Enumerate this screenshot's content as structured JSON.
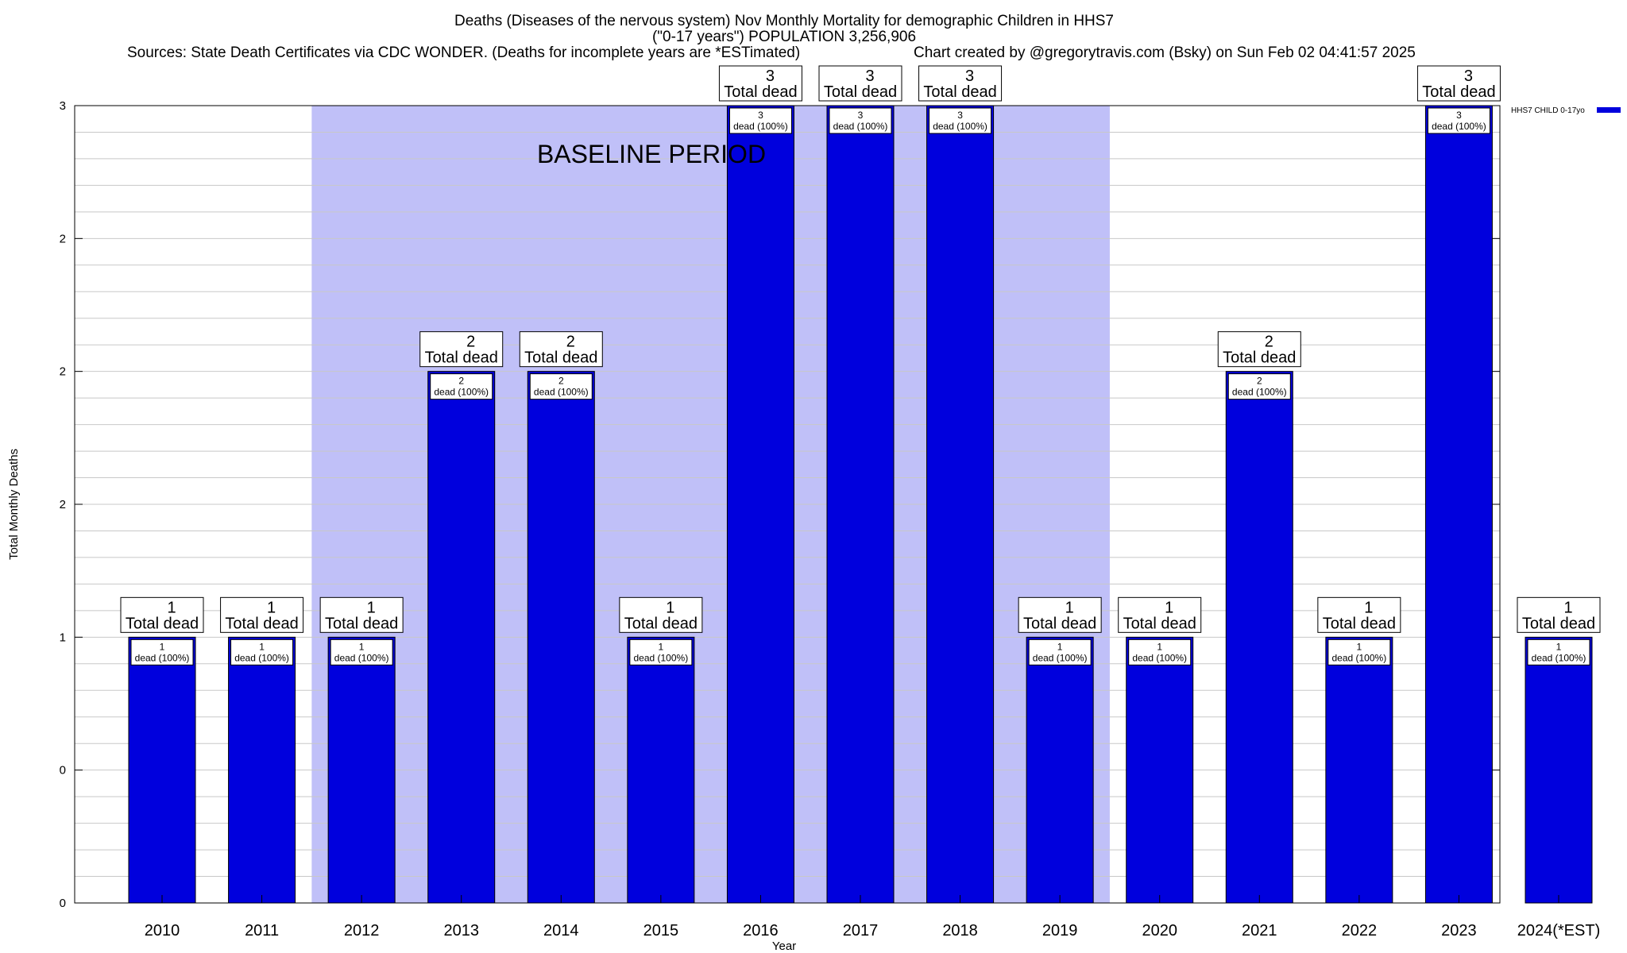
{
  "chart_data": {
    "type": "bar",
    "title": "Deaths (Diseases of the nervous system) Nov Monthly Mortality for demographic Children in HHS7",
    "subtitle": "(\"0-17 years\") POPULATION 3,256,906",
    "sources": "Sources: State Death Certificates via CDC WONDER. (Deaths for incomplete years are *ESTimated)",
    "credit": "Chart created by @gregorytravis.com (Bsky) on Sun Feb 02 04:41:57 2025",
    "xlabel": "Year",
    "ylabel": "Total Monthly Deaths",
    "categories": [
      "2010",
      "2011",
      "2012",
      "2013",
      "2014",
      "2015",
      "2016",
      "2017",
      "2018",
      "2019",
      "2020",
      "2021",
      "2022",
      "2023",
      "2024(*EST)"
    ],
    "series": [
      {
        "name": "HHS7 CHILD 0-17yo",
        "color": "#0000dd",
        "values": [
          1,
          1,
          1,
          2,
          2,
          1,
          3,
          3,
          3,
          1,
          1,
          2,
          1,
          3,
          1
        ]
      }
    ],
    "total_labels": {
      "value_text": [
        "1",
        "1",
        "1",
        "2",
        "2",
        "1",
        "3",
        "3",
        "3",
        "1",
        "1",
        "2",
        "1",
        "3",
        "1"
      ],
      "caption": "Total dead"
    },
    "inner_labels": {
      "value_text": [
        "1",
        "1",
        "1",
        "2",
        "2",
        "1",
        "3",
        "3",
        "3",
        "1",
        "1",
        "2",
        "1",
        "3",
        "1"
      ],
      "caption": "dead (100%)"
    },
    "yticks": [
      "0",
      "0",
      "1",
      "2",
      "2",
      "2",
      "3"
    ],
    "ylim": [
      0,
      3
    ],
    "baseline_period": {
      "label": "BASELINE PERIOD",
      "start": "2012",
      "end": "2019",
      "color": "#c0c0f8"
    },
    "grid": true,
    "legend_position": "top-right"
  }
}
